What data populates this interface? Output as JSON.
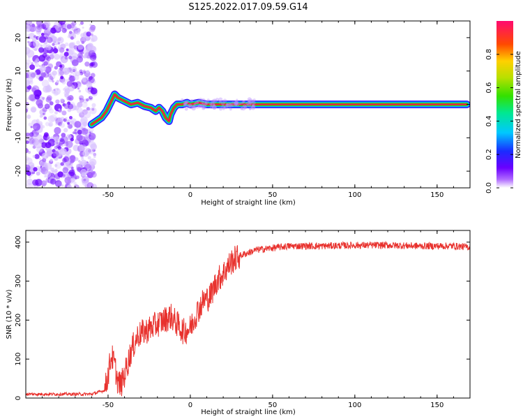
{
  "title": "S125.2022.017.09.59.G14",
  "colors": {
    "trace": "#e8312d",
    "line": "#e21b4d",
    "ridge": "#3ad13a",
    "axis": "#000000"
  },
  "colorbar": {
    "label": "Normalized spectral amplitude",
    "ticks": [
      "0.0",
      "0.2",
      "0.4",
      "0.6",
      "0.8"
    ],
    "tick_values": [
      0.0,
      0.2,
      0.4,
      0.6,
      0.8
    ],
    "range": [
      0,
      1
    ]
  },
  "chart_data": [
    {
      "type": "heatmap",
      "xlabel": "Height of straight line (km)",
      "ylabel": "Frequency (Hz)",
      "xlim": [
        -100,
        170
      ],
      "ylim": [
        -25,
        25
      ],
      "x_ticks": [
        "-50",
        "0",
        "50",
        "100",
        "150"
      ],
      "x_tick_values": [
        -50,
        0,
        50,
        100,
        150
      ],
      "y_ticks": [
        "-20",
        "-10",
        "0",
        "10",
        "20"
      ],
      "y_tick_values": [
        -20,
        -10,
        0,
        10,
        20
      ],
      "ridge": {
        "x": [
          -60,
          -57,
          -54,
          -51,
          -48,
          -46,
          -44,
          -40,
          -36,
          -32,
          -28,
          -24,
          -21,
          -19,
          -17,
          -15,
          -13,
          -12,
          -10,
          -8,
          -5,
          -2,
          0,
          5,
          10,
          20,
          40,
          60,
          100,
          140,
          168
        ],
        "y": [
          -6,
          -5,
          -4,
          -2,
          1,
          3,
          2,
          1,
          0,
          0.5,
          -0.5,
          -1,
          -2,
          -1,
          -2,
          -4,
          -5,
          -3,
          -1,
          0,
          0,
          0.5,
          0,
          0.5,
          0,
          0,
          0,
          0,
          0,
          0,
          0
        ]
      },
      "noise_region_x": [
        -100,
        -58
      ]
    },
    {
      "type": "line",
      "xlabel": "Height of straight line (km)",
      "ylabel": "SNR (10 * v/v)",
      "xlim": [
        -100,
        170
      ],
      "ylim": [
        0,
        430
      ],
      "x_ticks": [
        "-50",
        "0",
        "50",
        "100",
        "150"
      ],
      "x_tick_values": [
        -50,
        0,
        50,
        100,
        150
      ],
      "y_ticks": [
        "0",
        "100",
        "200",
        "300",
        "400"
      ],
      "y_tick_values": [
        0,
        100,
        200,
        300,
        400
      ],
      "trend": {
        "x": [
          -100,
          -60,
          -52,
          -50,
          -48,
          -46,
          -44,
          -42,
          -40,
          -36,
          -32,
          -28,
          -24,
          -20,
          -16,
          -12,
          -8,
          -4,
          0,
          4,
          8,
          12,
          16,
          20,
          25,
          30,
          40,
          50,
          60,
          80,
          100,
          120,
          140,
          160,
          170
        ],
        "y": [
          10,
          10,
          20,
          60,
          110,
          85,
          40,
          35,
          60,
          120,
          160,
          170,
          180,
          190,
          200,
          210,
          190,
          170,
          180,
          220,
          250,
          260,
          300,
          320,
          350,
          365,
          380,
          385,
          390,
          390,
          392,
          392,
          390,
          390,
          387
        ]
      }
    }
  ]
}
